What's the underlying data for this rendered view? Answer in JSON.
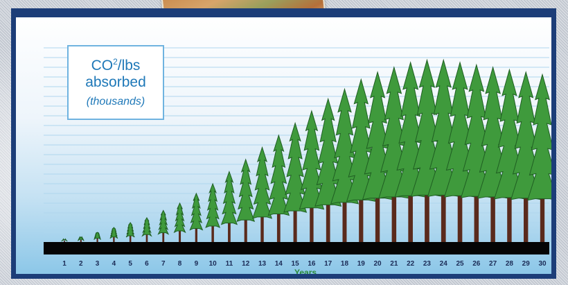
{
  "legend": {
    "line1": "CO",
    "line1_sup": "2",
    "line1_suffix": "/lbs",
    "line2": "absorbed",
    "line3": "(thousands)"
  },
  "chart_data": {
    "type": "bar",
    "title": "",
    "xlabel": "Years",
    "ylabel": "CO2/lbs absorbed (thousands)",
    "categories": [
      "1",
      "2",
      "3",
      "4",
      "5",
      "6",
      "7",
      "8",
      "9",
      "10",
      "11",
      "12",
      "13",
      "14",
      "15",
      "16",
      "17",
      "18",
      "19",
      "20",
      "21",
      "22",
      "23",
      "24",
      "25",
      "26",
      "27",
      "28",
      "29",
      "30"
    ],
    "values": [
      0.5,
      1,
      2,
      3,
      4,
      5,
      6.5,
      8,
      10,
      12,
      14.5,
      17,
      19.5,
      22,
      24.5,
      27,
      29.5,
      31.5,
      33.5,
      35,
      36,
      37,
      37.5,
      37.5,
      37,
      36.5,
      36,
      35.5,
      35,
      34.5
    ],
    "ylim": [
      0,
      40
    ],
    "grid": true,
    "legend_position": "top-left",
    "colors": {
      "tree": "#3f9a3c",
      "tree_dark": "#1f5e22",
      "trunk": "#5a2a1c",
      "frame": "#1c3d78",
      "grid": "#aed6ee"
    }
  }
}
